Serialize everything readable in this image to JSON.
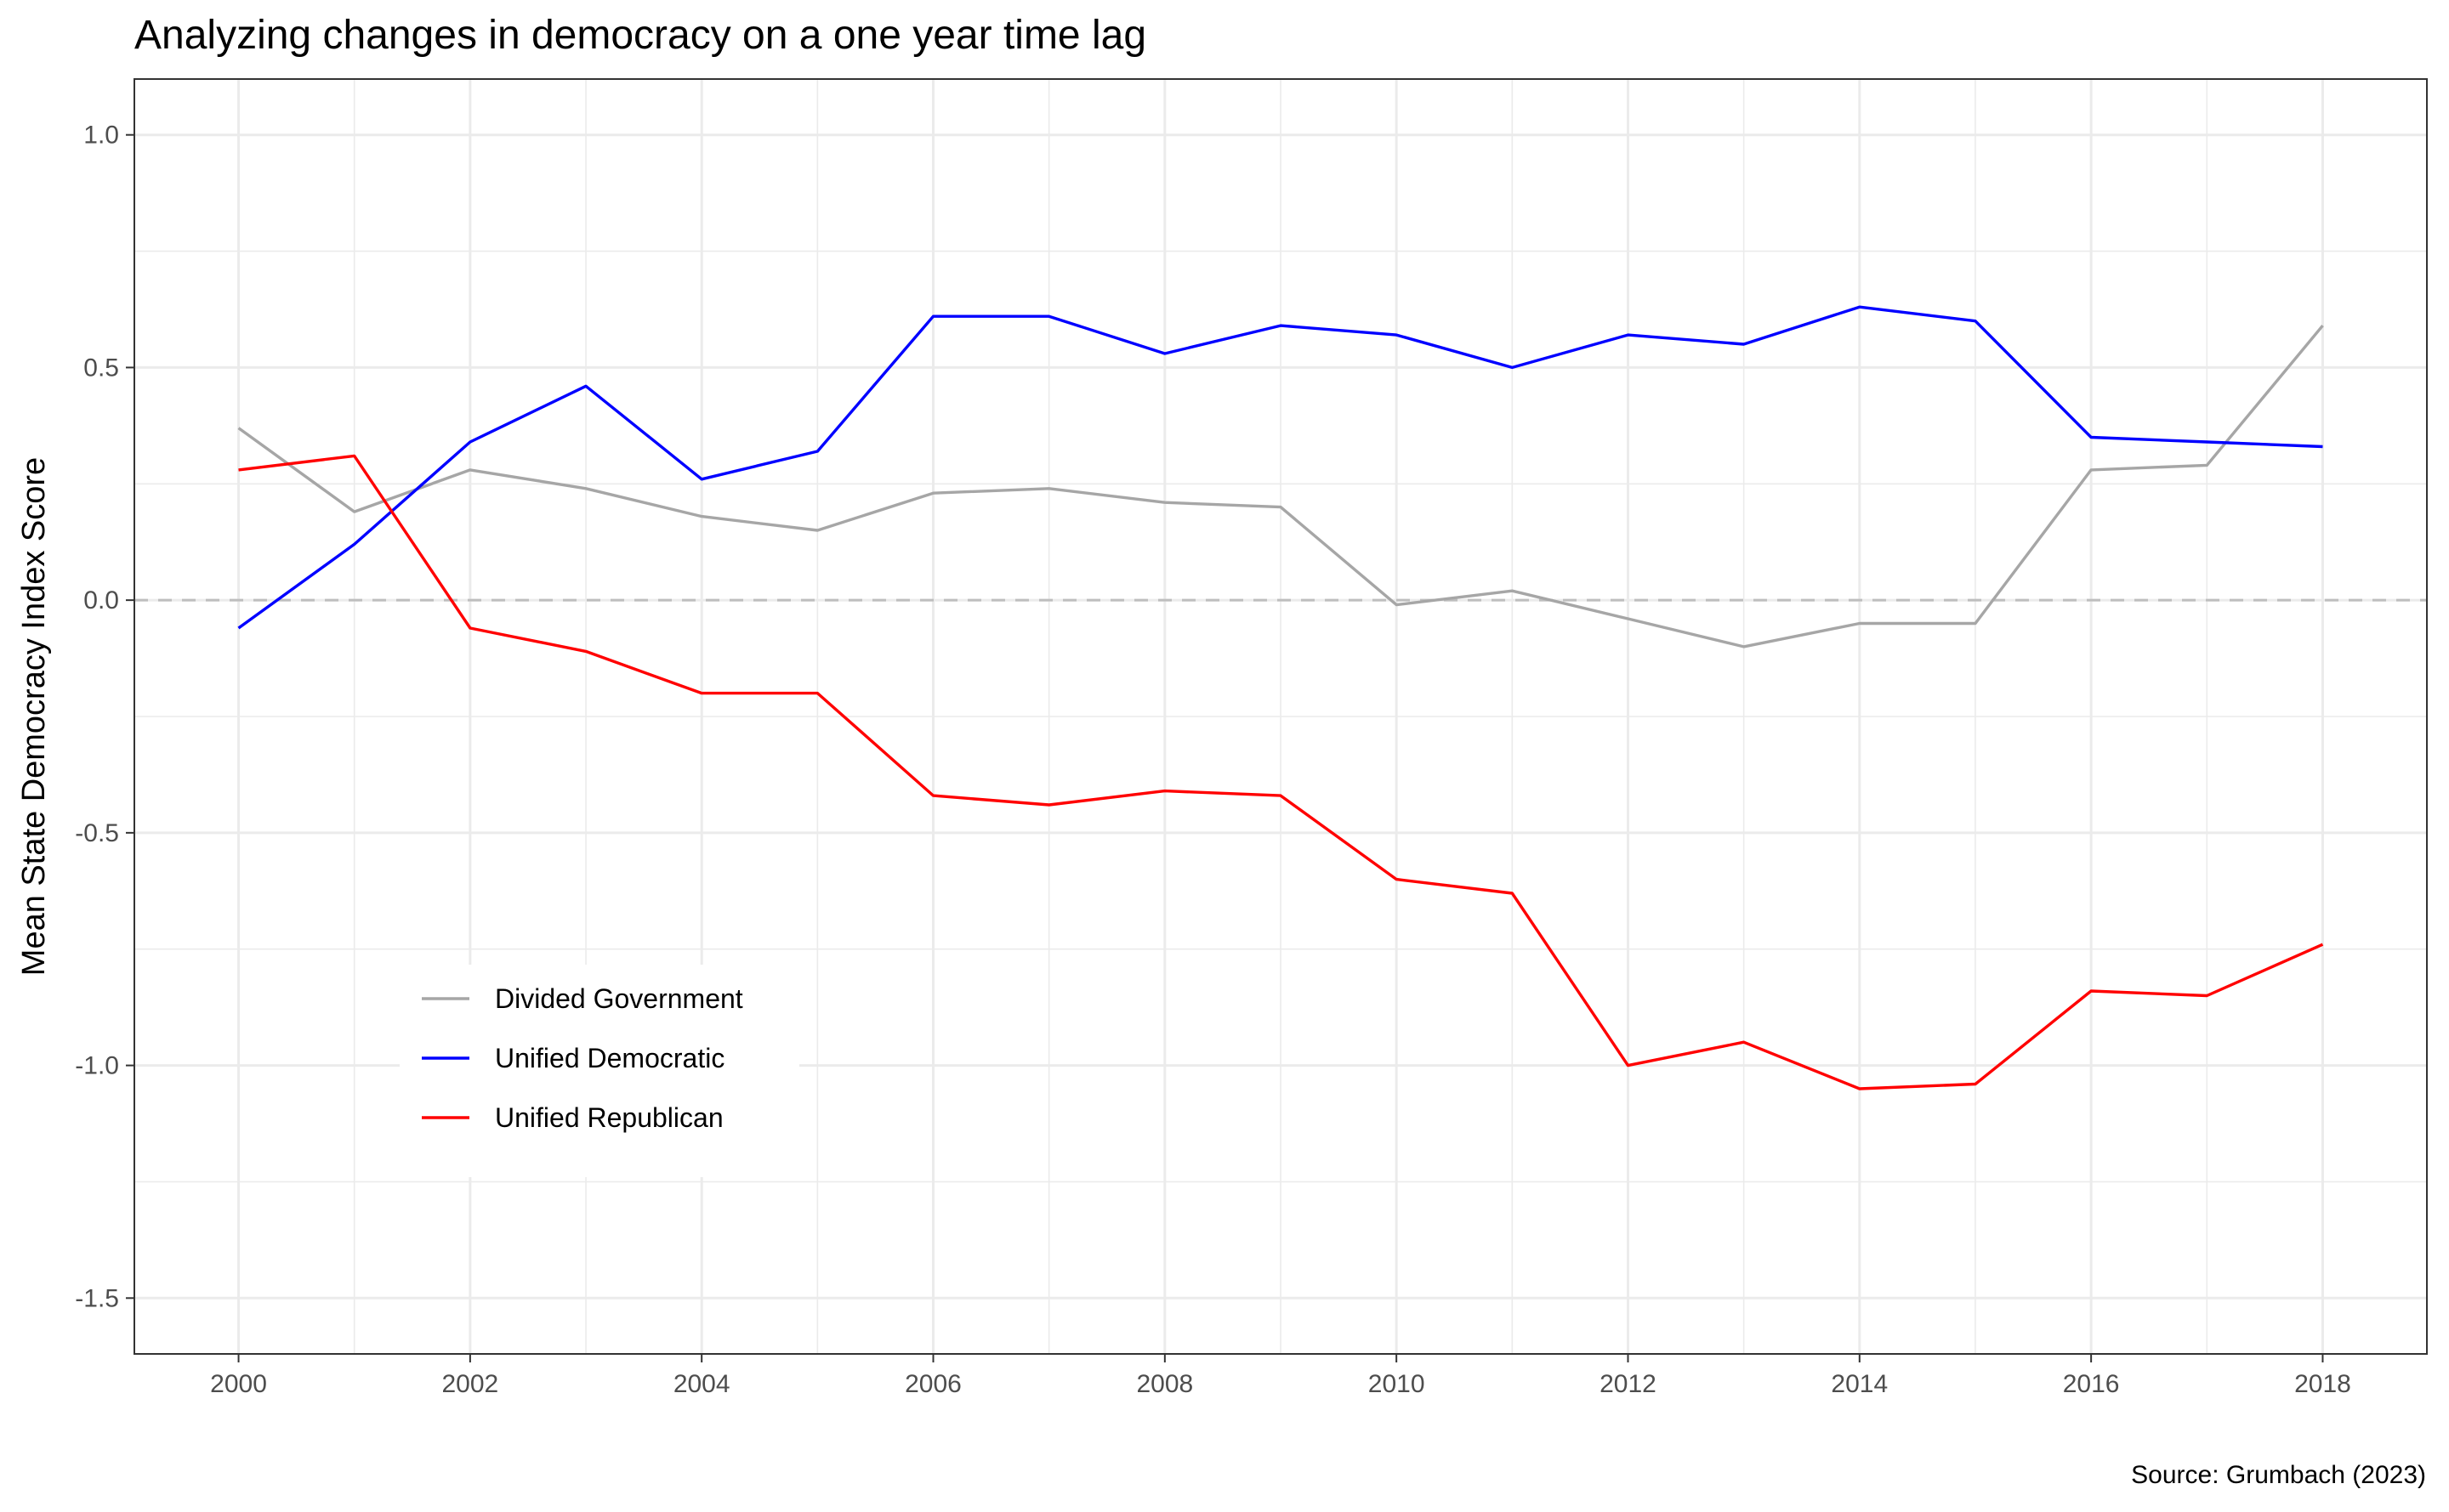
{
  "chart_data": {
    "type": "line",
    "title": "Analyzing changes in democracy on a one year time lag",
    "xlabel": "",
    "ylabel": "Mean State Democracy Index Score",
    "caption": "Source: Grumbach (2023)",
    "xlim": [
      1999.1,
      2018.9
    ],
    "ylim": [
      -1.62,
      1.12
    ],
    "x_ticks": [
      2000,
      2002,
      2004,
      2006,
      2008,
      2010,
      2012,
      2014,
      2016,
      2018
    ],
    "x_tick_labels": [
      "2000",
      "2002",
      "2004",
      "2006",
      "2008",
      "2010",
      "2012",
      "2014",
      "2016",
      "2018"
    ],
    "y_ticks": [
      1.0,
      0.5,
      0.0,
      -0.5,
      -1.0,
      -1.5
    ],
    "y_tick_labels": [
      "1.0",
      "0.5",
      "0.0",
      "-0.5",
      "-1.0",
      "-1.5"
    ],
    "reference_line": {
      "y": 0,
      "style": "dashed",
      "color": "#bebebe"
    },
    "grid": true,
    "legend_position": "inside-bottom-left",
    "x": [
      2000,
      2001,
      2002,
      2003,
      2004,
      2005,
      2006,
      2007,
      2008,
      2009,
      2010,
      2011,
      2012,
      2013,
      2014,
      2015,
      2016,
      2017,
      2018
    ],
    "series": [
      {
        "name": "Divided Government",
        "color": "#a6a6a6",
        "values": [
          0.37,
          0.19,
          0.28,
          0.24,
          0.18,
          0.15,
          0.23,
          0.24,
          0.21,
          0.2,
          -0.01,
          0.02,
          -0.04,
          -0.1,
          -0.05,
          -0.05,
          0.28,
          0.29,
          0.59
        ]
      },
      {
        "name": "Unified Democratic",
        "color": "#0000ff",
        "values": [
          -0.06,
          0.12,
          0.34,
          0.46,
          0.26,
          0.32,
          0.61,
          0.61,
          0.53,
          0.59,
          0.57,
          0.5,
          0.57,
          0.55,
          0.63,
          0.6,
          0.35,
          0.34,
          0.33
        ]
      },
      {
        "name": "Unified Republican",
        "color": "#ff0000",
        "values": [
          0.28,
          0.31,
          -0.06,
          -0.11,
          -0.2,
          -0.2,
          -0.42,
          -0.44,
          -0.41,
          -0.42,
          -0.6,
          -0.63,
          -1.0,
          -0.95,
          -1.05,
          -1.04,
          -0.84,
          -0.85,
          -0.74
        ]
      }
    ]
  }
}
